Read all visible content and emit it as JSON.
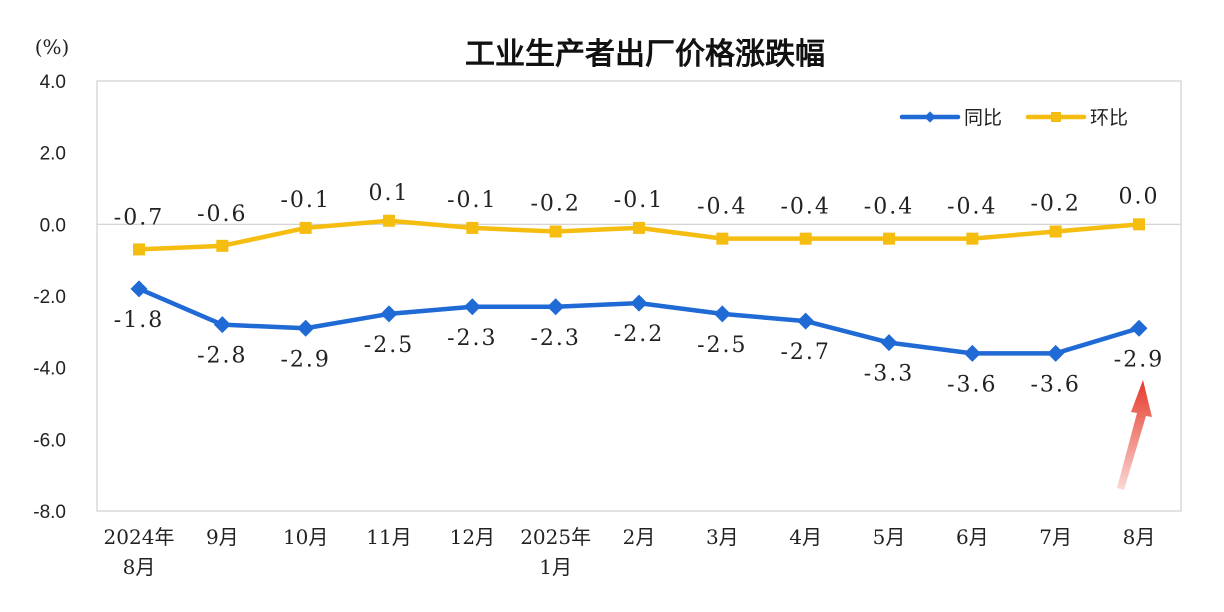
{
  "chart_data": {
    "type": "line",
    "title": "工业生产者出厂价格涨跌幅",
    "unit": "(%)",
    "ylim": [
      -8.0,
      4.0
    ],
    "yticks": [
      "4.0",
      "2.0",
      "0.0",
      "-2.0",
      "-4.0",
      "-6.0",
      "-8.0"
    ],
    "ytick_values": [
      4,
      2,
      0,
      -2,
      -4,
      -6,
      -8
    ],
    "categories": [
      [
        "2024年",
        "8月"
      ],
      [
        "9月"
      ],
      [
        "10月"
      ],
      [
        "11月"
      ],
      [
        "12月"
      ],
      [
        "2025年",
        "1月"
      ],
      [
        "2月"
      ],
      [
        "3月"
      ],
      [
        "4月"
      ],
      [
        "5月"
      ],
      [
        "6月"
      ],
      [
        "7月"
      ],
      [
        "8月"
      ]
    ],
    "legend_position": "top-right",
    "series": [
      {
        "name": "同比",
        "color": "#1f6ad4",
        "values": [
          -1.8,
          -2.8,
          -2.9,
          -2.5,
          -2.3,
          -2.3,
          -2.2,
          -2.5,
          -2.7,
          -3.3,
          -3.6,
          -3.6,
          -2.9
        ],
        "labels": [
          "-1.8",
          "-2.8",
          "-2.9",
          "-2.5",
          "-2.3",
          "-2.3",
          "-2.2",
          "-2.5",
          "-2.7",
          "-3.3",
          "-3.6",
          "-3.6",
          "-2.9"
        ],
        "label_position": "below"
      },
      {
        "name": "环比",
        "color": "#f5bd10",
        "values": [
          -0.7,
          -0.6,
          -0.1,
          0.1,
          -0.1,
          -0.2,
          -0.1,
          -0.4,
          -0.4,
          -0.4,
          -0.4,
          -0.2,
          0.0
        ],
        "labels": [
          "-0.7",
          "-0.6",
          "-0.1",
          "0.1",
          "-0.1",
          "-0.2",
          "-0.1",
          "-0.4",
          "-0.4",
          "-0.4",
          "-0.4",
          "-0.2",
          "0.0"
        ],
        "label_position": "above"
      }
    ],
    "annotation": {
      "type": "arrow",
      "color": "#e53a2a",
      "points_to": "同比 8月"
    },
    "grid": false
  }
}
